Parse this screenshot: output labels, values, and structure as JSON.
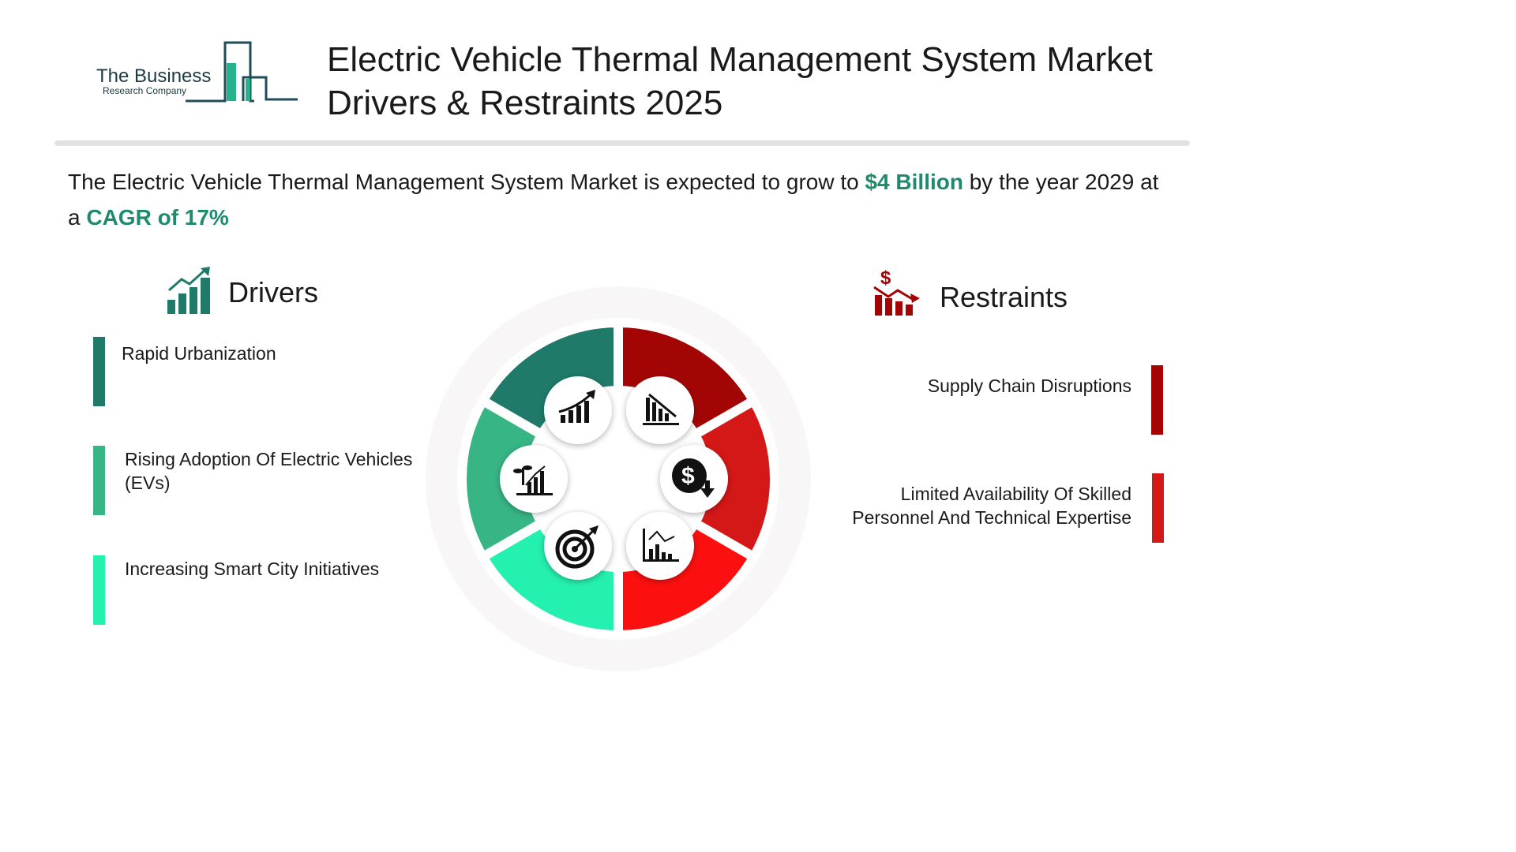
{
  "brand": {
    "name": "The Business",
    "sub": "Research Company"
  },
  "title": {
    "line1": "Electric Vehicle Thermal Management System Market",
    "line2": "Drivers & Restraints 2025"
  },
  "summary": {
    "p1": "The  Electric Vehicle Thermal Management System Market  is expected to grow to ",
    "value": "$4 Billion",
    "p2": "  by the year 2029 at a ",
    "cagr": "CAGR of  17%"
  },
  "drivers": {
    "heading": "Drivers",
    "icon": "growth-chart-icon",
    "items": [
      {
        "label": "Rapid Urbanization",
        "color": "#1f7a6a"
      },
      {
        "label": "Rising Adoption Of Electric Vehicles (EVs)",
        "color": "#37b585"
      },
      {
        "label": "Increasing Smart City Initiatives",
        "color": "#24f0b0"
      }
    ]
  },
  "restraints": {
    "heading": "Restraints",
    "icon": "dollar-decline-chart-icon",
    "items": [
      {
        "label": "Supply Chain Disruptions",
        "color": "#a30505"
      },
      {
        "label": "Limited Availability Of Skilled Personnel And Technical Expertise",
        "color": "#d41717"
      }
    ]
  },
  "wheel": {
    "segment_colors": [
      "#1f7a6a",
      "#37b585",
      "#24f0b0",
      "#a30505",
      "#d41717",
      "#fc0f0f"
    ],
    "icons": [
      "growth-chart-icon",
      "declining-bars-icon",
      "plant-growth-chart-icon",
      "dollar-down-icon",
      "target-arrow-icon",
      "declining-line-chart-icon"
    ]
  }
}
